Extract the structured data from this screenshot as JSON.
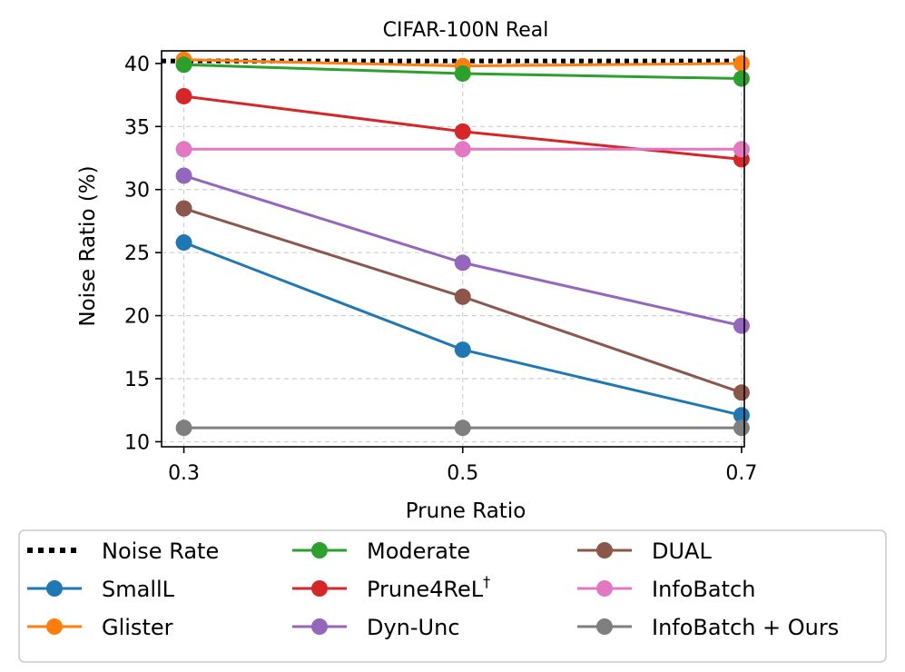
{
  "chart_data": {
    "type": "line",
    "title": "CIFAR-100N Real",
    "xlabel": "Prune Ratio",
    "ylabel": "Noise Ratio (%)",
    "x": [
      0.3,
      0.5,
      0.7
    ],
    "x_tick_labels": [
      "0.3",
      "0.5",
      "0.7"
    ],
    "y_ticks": [
      10,
      15,
      20,
      25,
      30,
      35,
      40
    ],
    "y_tick_labels": [
      "10",
      "15",
      "20",
      "25",
      "30",
      "35",
      "40"
    ],
    "xlim": [
      0.284,
      0.702
    ],
    "ylim": [
      9.6,
      41.0
    ],
    "grid": true,
    "reference_line": {
      "name": "Noise Rate",
      "value": 40.2,
      "color": "#000000",
      "style": "dotted"
    },
    "series": [
      {
        "name": "SmallL",
        "values": [
          25.8,
          17.3,
          12.1
        ],
        "color": "#1f77b4"
      },
      {
        "name": "Glister",
        "values": [
          40.3,
          39.8,
          40.0
        ],
        "color": "#ff7f0e"
      },
      {
        "name": "Moderate",
        "values": [
          39.9,
          39.2,
          38.8
        ],
        "color": "#2ca02c"
      },
      {
        "name": "Prune4ReL",
        "legend_superscript": "†",
        "values": [
          37.4,
          34.6,
          32.4
        ],
        "color": "#d62728"
      },
      {
        "name": "Dyn-Unc",
        "values": [
          31.1,
          24.2,
          19.2
        ],
        "color": "#9467bd"
      },
      {
        "name": "DUAL",
        "values": [
          28.5,
          21.5,
          13.9
        ],
        "color": "#8c564b"
      },
      {
        "name": "InfoBatch",
        "values": [
          33.2,
          33.2,
          33.2
        ],
        "color": "#e377c2"
      },
      {
        "name": "InfoBatch + Ours",
        "values": [
          11.1,
          11.1,
          11.1
        ],
        "color": "#7f7f7f"
      }
    ],
    "legend": {
      "placement": "bottom",
      "columns": 3,
      "entries": [
        "Noise Rate",
        "SmallL",
        "Glister",
        "Moderate",
        "Prune4ReL",
        "Dyn-Unc",
        "DUAL",
        "InfoBatch",
        "InfoBatch + Ours"
      ]
    }
  }
}
